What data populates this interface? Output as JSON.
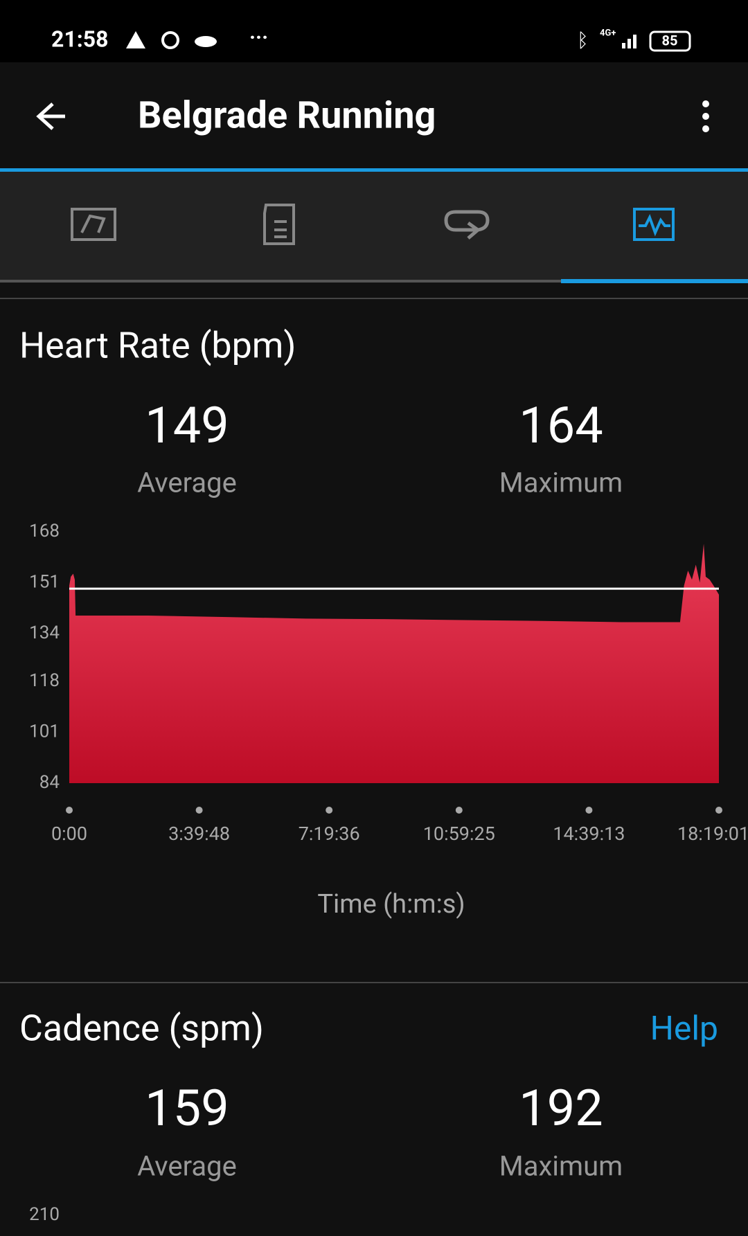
{
  "status_bar": {
    "time": "21:58",
    "network": "4G+",
    "battery": "85"
  },
  "app_bar": {
    "title": "Belgrade Running"
  },
  "heart_rate": {
    "title": "Heart Rate (bpm)",
    "average": "149",
    "average_label": "Average",
    "maximum": "164",
    "maximum_label": "Maximum",
    "average_line": 149,
    "chart": {
      "type": "area",
      "x_label": "Time (h:m:s)",
      "x": [
        0,
        160,
        400,
        560,
        640,
        8000,
        16000,
        24000,
        32000,
        40000,
        48000,
        56000,
        62000,
        62400,
        62800,
        63200,
        63600,
        64000,
        64400,
        64600,
        65000,
        65400,
        65941
      ],
      "values": [
        150,
        153,
        154,
        152,
        140,
        140,
        139.5,
        139,
        138.8,
        138.5,
        138.2,
        137.8,
        137.8,
        150,
        155,
        152,
        157,
        151,
        164,
        153,
        152,
        150,
        147
      ],
      "ylim": [
        84,
        168
      ],
      "yticks": [
        84,
        101,
        118,
        134,
        151,
        168
      ],
      "xlim": [
        0,
        65941
      ],
      "xticks": [
        {
          "value": 0,
          "label": "0:00"
        },
        {
          "value": 13188,
          "label": "3:39:48"
        },
        {
          "value": 26376,
          "label": "7:19:36"
        },
        {
          "value": 39565,
          "label": "10:59:25"
        },
        {
          "value": 52753,
          "label": "14:39:13"
        },
        {
          "value": 65941,
          "label": "18:19:01"
        }
      ],
      "color_top": "#ea3d58",
      "color_bottom": "#bd0c26"
    }
  },
  "cadence": {
    "title": "Cadence (spm)",
    "help": "Help",
    "average": "159",
    "average_label": "Average",
    "maximum": "192",
    "maximum_label": "Maximum",
    "y_top_tick": 210
  }
}
